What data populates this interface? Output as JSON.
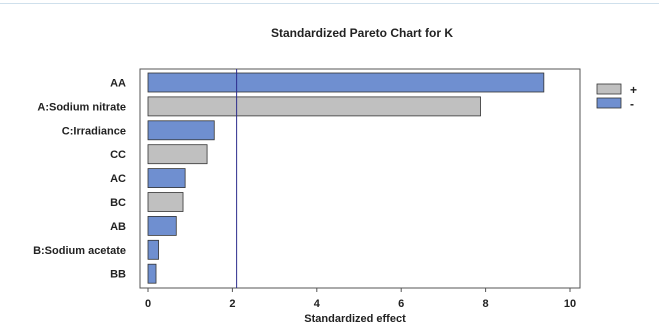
{
  "chart_data": {
    "type": "bar",
    "orientation": "horizontal",
    "title": "Standardized Pareto Chart for K",
    "xlabel": "Standardized effect",
    "categories": [
      "AA",
      "A:Sodium nitrate",
      "C:Irradiance",
      "CC",
      "AC",
      "BC",
      "AB",
      "B:Sodium acetate",
      "BB"
    ],
    "values": [
      9.38,
      7.88,
      1.57,
      1.4,
      0.88,
      0.83,
      0.67,
      0.25,
      0.19
    ],
    "signs": [
      "-",
      "+",
      "-",
      "+",
      "-",
      "+",
      "-",
      "-",
      "-"
    ],
    "xlim": [
      0,
      10.5
    ],
    "xticks": [
      0,
      2,
      4,
      6,
      8,
      10
    ],
    "reference_line": 2.1,
    "legend": [
      {
        "label": "+",
        "color": "#c0c0c0"
      },
      {
        "label": "-",
        "color": "#6f8fd0"
      }
    ],
    "legend_position": "top-right",
    "colors": {
      "positive": "#c0c0c0",
      "negative": "#6f8fd0",
      "reference": "#2c2c8c"
    }
  }
}
